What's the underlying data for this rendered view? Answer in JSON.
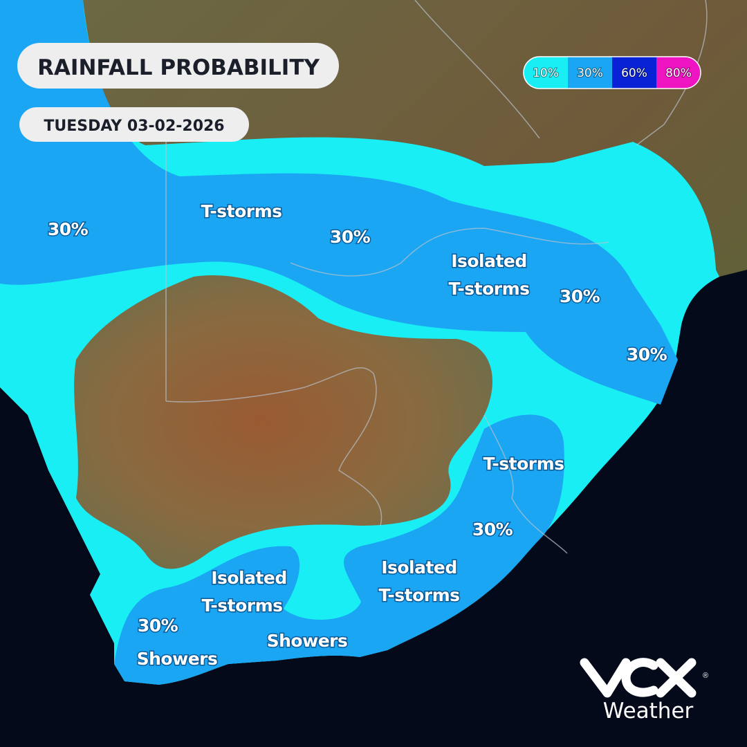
{
  "header": {
    "title": "RAINFALL PROBABILITY",
    "date": "TUESDAY 03-02-2026"
  },
  "legend": {
    "items": [
      {
        "label": "10%",
        "color": "#19eef5"
      },
      {
        "label": "30%",
        "color": "#1aa6f2"
      },
      {
        "label": "60%",
        "color": "#0a22d6"
      },
      {
        "label": "80%",
        "color": "#ee14c2"
      }
    ]
  },
  "map_labels": [
    {
      "lines": [
        "30%"
      ]
    },
    {
      "lines": [
        "T-storms"
      ]
    },
    {
      "lines": [
        "30%"
      ]
    },
    {
      "lines": [
        "Isolated",
        "T-storms"
      ]
    },
    {
      "lines": [
        "30%"
      ]
    },
    {
      "lines": [
        "30%"
      ]
    },
    {
      "lines": [
        "T-storms"
      ]
    },
    {
      "lines": [
        "30%"
      ]
    },
    {
      "lines": [
        "Isolated",
        "T-storms"
      ]
    },
    {
      "lines": [
        "Isolated",
        "T-storms"
      ]
    },
    {
      "lines": [
        "30%"
      ]
    },
    {
      "lines": [
        "Showers"
      ]
    },
    {
      "lines": [
        "Showers"
      ]
    }
  ],
  "logo": {
    "registered": "®",
    "subtitle": "Weather"
  }
}
